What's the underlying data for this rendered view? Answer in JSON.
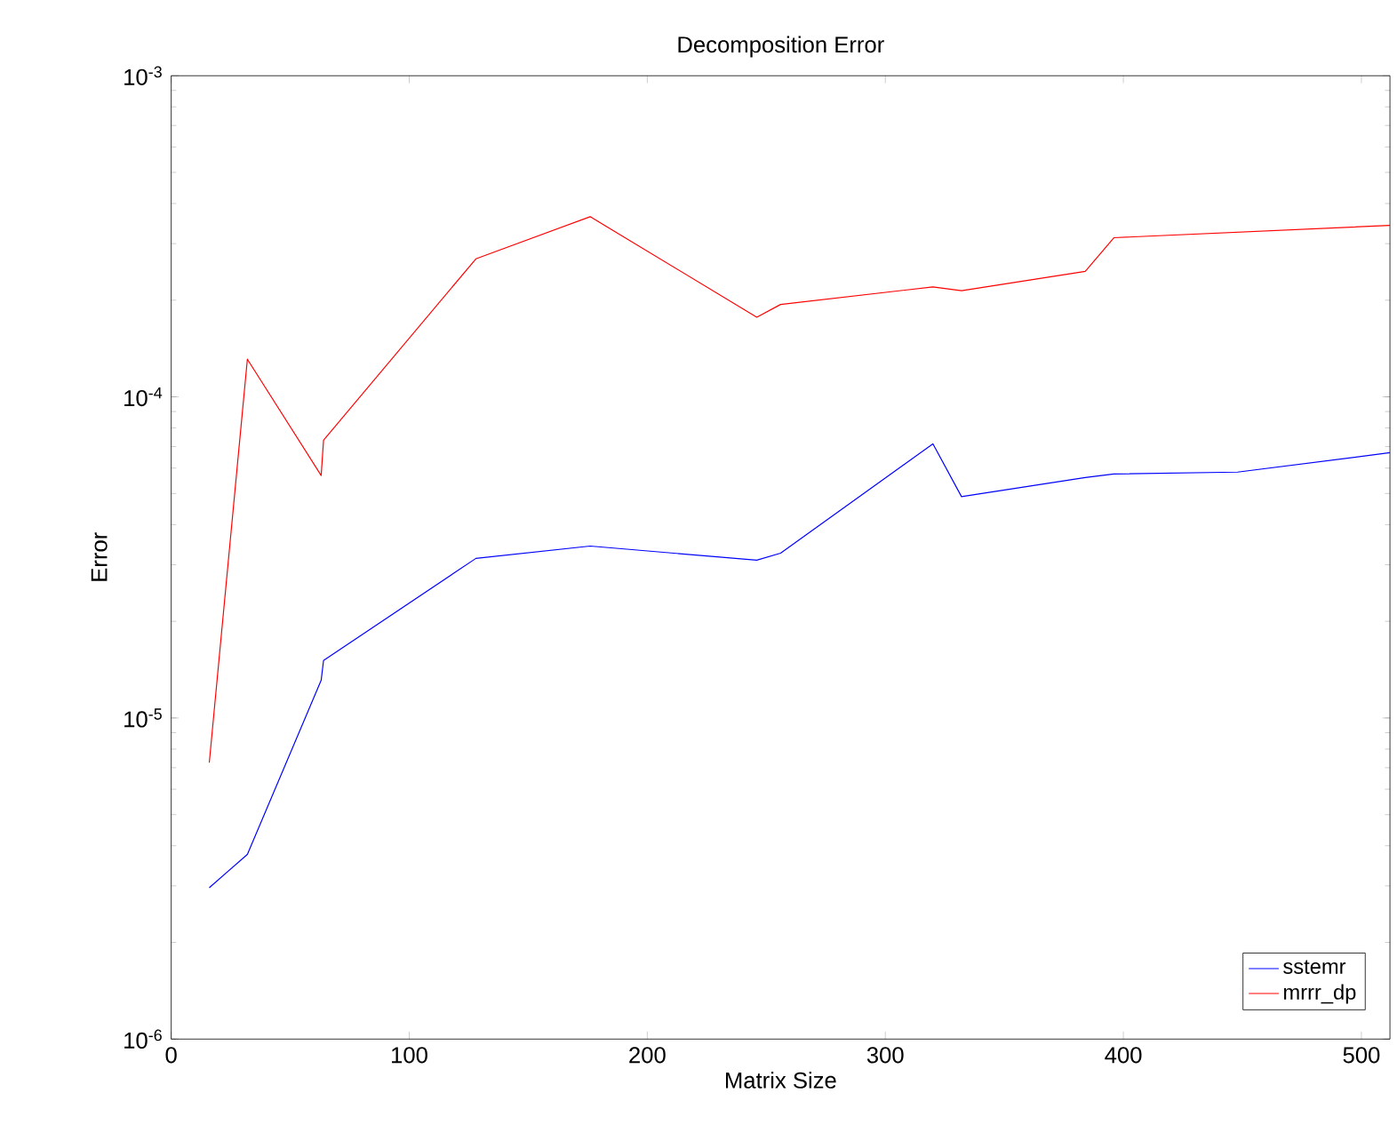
{
  "chart_data": {
    "type": "line",
    "title": "Decomposition Error",
    "xlabel": "Matrix Size",
    "ylabel": "Error",
    "log": "y",
    "grid": false,
    "legend": "bottom right",
    "marker": "none",
    "line_style": "solid",
    "xlim": [
      0,
      512
    ],
    "xticks": [
      0,
      100,
      200,
      300,
      400,
      500
    ],
    "ylim": [
      1e-06,
      0.001
    ],
    "yticks": [
      {
        "value": 1e-06,
        "label": "10$^{-6}$"
      },
      {
        "value": 1e-05,
        "label": "10$^{-5}$"
      },
      {
        "value": 0.0001,
        "label": "10$^{-4}$"
      },
      {
        "value": 0.001,
        "label": "10$^{-3}$"
      }
    ],
    "series": [
      {
        "name": "sstemr",
        "color": "#0000ff",
        "x": [
          16,
          32,
          63,
          64,
          128,
          176,
          246,
          256,
          320,
          332,
          384,
          396,
          448,
          512
        ],
        "values": [
          2.96e-06,
          3.76e-06,
          1.31e-05,
          1.51e-05,
          3.14e-05,
          3.43e-05,
          3.1e-05,
          3.26e-05,
          7.14e-05,
          4.89e-05,
          5.61e-05,
          5.75e-05,
          5.83e-05,
          6.7e-05
        ]
      },
      {
        "name": "mrrr_dp",
        "color": "#ff0000",
        "x": [
          16,
          32,
          63,
          64,
          128,
          176,
          246,
          256,
          320,
          332,
          384,
          396,
          512
        ],
        "values": [
          7.26e-06,
          0.000131,
          5.69e-05,
          7.33e-05,
          0.000269,
          0.000364,
          0.000177,
          0.000194,
          0.00022,
          0.000214,
          0.000246,
          0.000313,
          0.000342
        ]
      }
    ]
  }
}
